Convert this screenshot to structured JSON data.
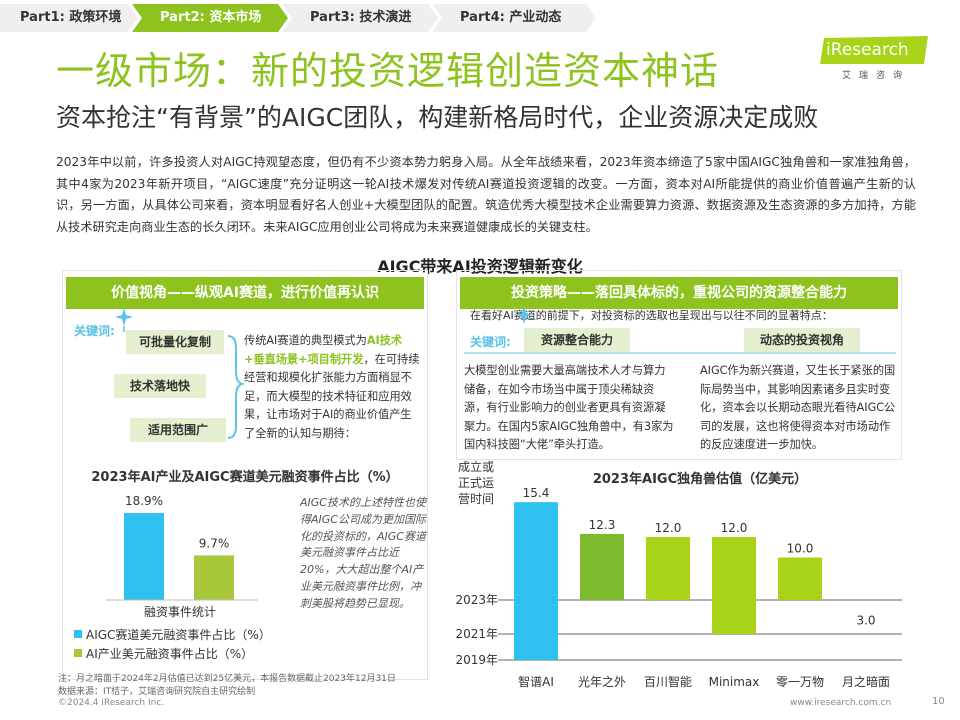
{
  "nav": {
    "items": [
      {
        "label": "Part1: 政策环境",
        "active": false
      },
      {
        "label": "Part2: 资本市场",
        "active": true
      },
      {
        "label": "Part3: 技术演进",
        "active": false
      },
      {
        "label": "Part4: 产业动态",
        "active": false
      }
    ],
    "colors": {
      "active": "#8dc21f",
      "inactive": "#efefef"
    }
  },
  "header": {
    "title": "一级市场：新的投资逻辑创造资本神话",
    "subtitle": "资本抢注“有背景”的AIGC团队，构建新格局时代，企业资源决定成败"
  },
  "logo": {
    "text": "iResearch",
    "sub": "艾瑞咨询"
  },
  "intro": "2023年中以前，许多投资人对AIGC持观望态度，但仍有不少资本势力躬身入局。从全年战绩来看，2023年资本缔造了5家中国AIGC独角兽和一家准独角兽，其中4家为2023年新开项目，“AIGC速度”充分证明这一轮AI技术爆发对传统AI赛道投资逻辑的改变。一方面，资本对AI所能提供的商业价值普遍产生新的认识，另一方面，从具体公司来看，资本明显看好名人创业+大模型团队的配置。筑造优秀大模型技术企业需要算力资源、数据资源及生态资源的多方加持，方能从技术研究走向商业生态的长久闭环。未来AIGC应用创业公司将成为未来赛道健康成长的关键支柱。",
  "center_title": "AIGC带来AI投资逻辑新变化",
  "left": {
    "banner": "价值视角——纵观AI赛道，进行价值再认识",
    "kw_label": "关键词:",
    "keywords": [
      "可批量化复制",
      "技术落地快",
      "适用范围广"
    ],
    "desc_pre": "传统AI赛道的典型模式为",
    "desc_hl": "AI技术+垂直场景+项目制开发",
    "desc_post": "，在可持续经营和规模化扩张能力方面稍显不足，而大模型的技术特征和应用效果，让市场对于AI的商业价值产生了全新的认知与期待：",
    "chart_title": "2023年AI产业及AIGC赛道美元融资事件占比（%）",
    "xlabel": "融资事件统计",
    "note": "AIGC技术的上述特性也使得AIGC公司成为更加国际化的投资标的，AIGC赛道美元融资事件占比近20%，大大超出整个AI产业美元融资事件比例，冲刺美股将趋势已显现。"
  },
  "right": {
    "banner": "投资策略——落回具体标的，重视公司的资源整合能力",
    "lead": "在看好AI赛道的前提下，对投资标的选取也呈现出与以往不同的显著特点：",
    "kw_label": "关键词:",
    "keywords": [
      "资源整合能力",
      "动态的投资视角"
    ],
    "desc1": "大模型创业需要大量高端技术人才与算力储备，在如今市场当中属于顶尖稀缺资源，有行业影响力的创业者更具有资源凝聚力。在国内5家AIGC独角兽中，有3家为国内科技圈“大佬”牵头打造。",
    "desc2": "AIGC作为新兴赛道，又生长于紧张的国际局势当中，其影响因素诸多且实时变化，资本会以长期动态眼光看待AIGC公司的发展，这也将使得资本对市场动作的反应速度进一步加快。",
    "chart_title": "2023年AIGC独角兽估值（亿美元）",
    "ylabel": "成立或正式运营时间"
  },
  "chart_data": [
    {
      "type": "bar",
      "title": "2023年AI产业及AIGC赛道美元融资事件占比（%）",
      "categories": [
        "融资事件统计"
      ],
      "xlabel": "融资事件统计",
      "series": [
        {
          "name": "AIGC赛道美元融资事件占比（%）",
          "values": [
            18.9
          ],
          "labels": [
            "18.9%"
          ],
          "color": "#2ec0ee"
        },
        {
          "name": "AI产业美元融资事件占比（%）",
          "values": [
            9.7
          ],
          "labels": [
            "9.7%"
          ],
          "color": "#a8c83a"
        }
      ],
      "ylim": [
        0,
        20
      ],
      "legend": "bottom-left"
    },
    {
      "type": "bar",
      "title": "2023年AIGC独角兽估值（亿美元）",
      "ylabel": "成立或正式运营时间",
      "categories": [
        "智谱AI",
        "光年之外",
        "百川智能",
        "Minimax",
        "零一万物",
        "月之暗面"
      ],
      "values": [
        15.4,
        12.3,
        12.0,
        12.0,
        10.0,
        3.0
      ],
      "value_labels": [
        "15.4",
        "12.3",
        "12.0",
        "12.0",
        "10.0",
        "3.0"
      ],
      "founded": [
        "2019年",
        "2023年",
        "2023年",
        "2021年",
        "2023年",
        "2023年"
      ],
      "founded_ticks": [
        "2023年",
        "2021年",
        "2019年"
      ],
      "colors": [
        "#2ec0ee",
        "#7dbb2e",
        "#a8d318",
        "#a8d318",
        "#a8d318",
        "#a8d318"
      ]
    }
  ],
  "footer": {
    "note1": "注：月之暗面于2024年2月估值已达到25亿美元，本报告数据截止2023年12月31日",
    "note2": "数据来源：IT桔子，艾瑞咨询研究院自主研究绘制",
    "copyright": "©2024.4 iResearch Inc.",
    "website": "www.iresearch.com.cn",
    "page": "10"
  }
}
